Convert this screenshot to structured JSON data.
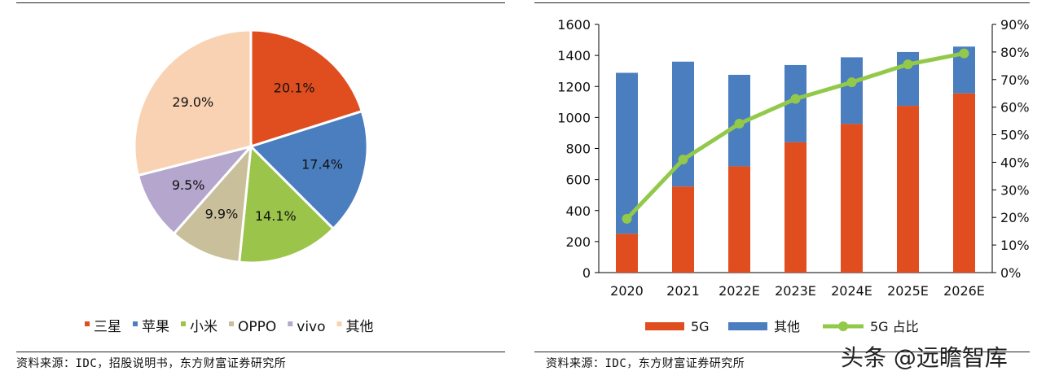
{
  "chart_data": [
    {
      "type": "pie",
      "categories": [
        "三星",
        "苹果",
        "小米",
        "OPPO",
        "vivo",
        "其他"
      ],
      "values": [
        20.1,
        17.4,
        14.1,
        9.9,
        9.5,
        29.0
      ],
      "labels": [
        "20.1%",
        "17.4%",
        "14.1%",
        "9.9%",
        "9.5%",
        "29.0%"
      ],
      "colors": [
        "#e04e1f",
        "#4a7ebf",
        "#9bc44b",
        "#c9bf9a",
        "#b4a6cc",
        "#f8d2b2"
      ],
      "legend_position": "bottom"
    },
    {
      "type": "bar",
      "stacked": true,
      "categories": [
        "2020",
        "2021",
        "2022E",
        "2023E",
        "2024E",
        "2025E",
        "2026E"
      ],
      "series": [
        {
          "name": "5G",
          "kind": "bar",
          "color": "#e04e1f",
          "values": [
            250,
            555,
            685,
            840,
            958,
            1075,
            1155
          ]
        },
        {
          "name": "其他",
          "kind": "bar",
          "color": "#4a7ebf",
          "values": [
            1038,
            805,
            590,
            498,
            430,
            347,
            302
          ]
        },
        {
          "name": "5G 占比",
          "kind": "line",
          "axis": "right",
          "color": "#92c94a",
          "values": [
            19.5,
            41,
            54,
            63,
            69,
            75.5,
            79.5
          ]
        }
      ],
      "yticks": [
        "0",
        "200",
        "400",
        "600",
        "800",
        "1000",
        "1200",
        "1400",
        "1600"
      ],
      "y2ticks": [
        "0%",
        "10%",
        "20%",
        "30%",
        "40%",
        "50%",
        "60%",
        "70%",
        "80%",
        "90%"
      ],
      "ylim": [
        0,
        1600
      ],
      "y2lim": [
        0,
        90
      ],
      "legend_position": "bottom"
    }
  ],
  "sources": {
    "left": "资料来源：IDC，招股说明书，东方财富证券研究所",
    "right": "资料来源：IDC，东方财富证券研究所"
  },
  "watermark": "头条 @远瞻智库"
}
